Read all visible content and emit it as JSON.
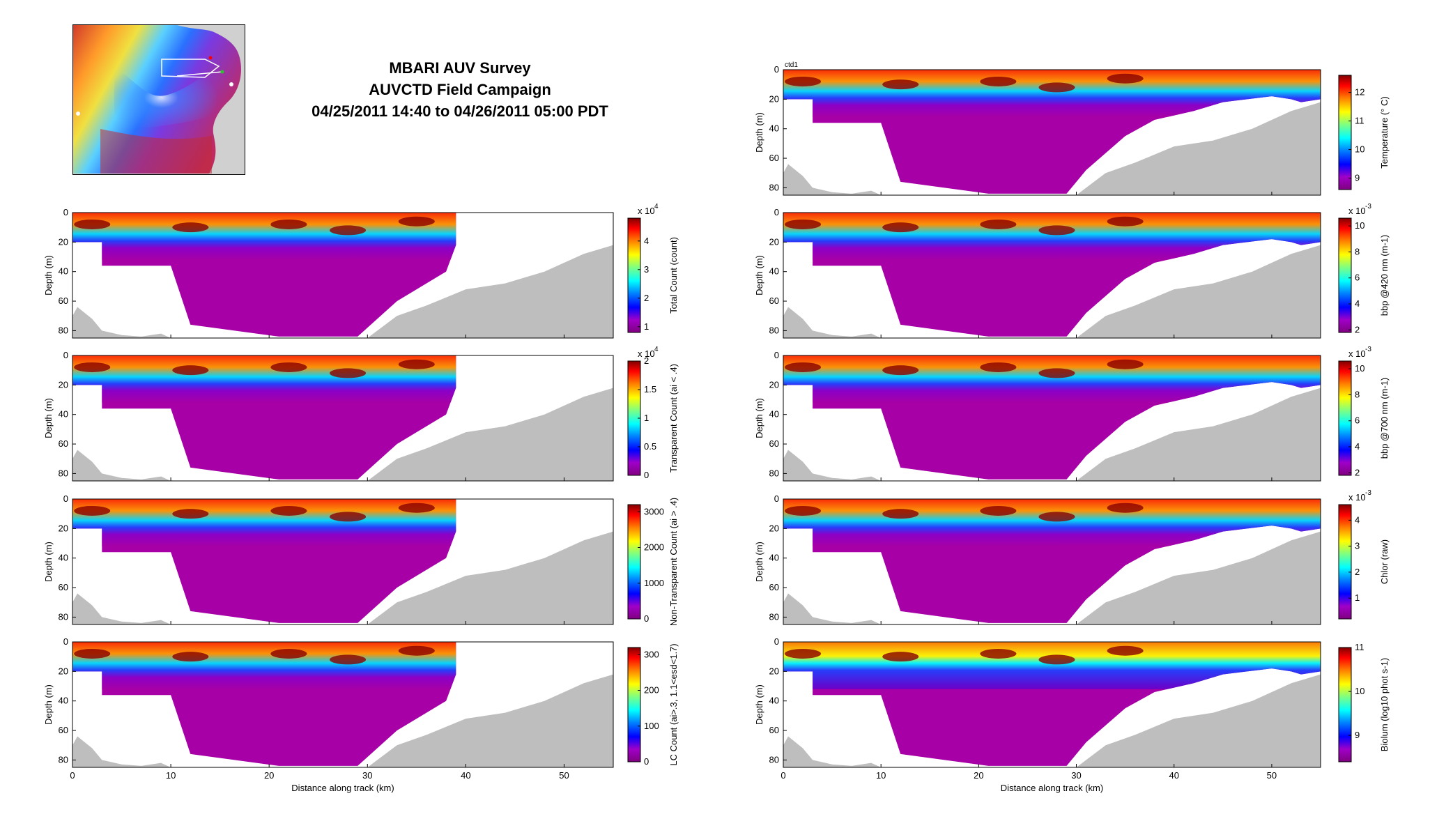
{
  "header": {
    "line1": "MBARI AUV Survey",
    "line2": "AUVCTD Field Campaign",
    "line3": "04/25/2011 14:40 to 04/26/2011 05:00 PDT"
  },
  "colors": {
    "water_fill": "#a600a6",
    "seafloor": "#bebebe",
    "colormap": "jet"
  },
  "chart_data": [
    {
      "type": "heatmap",
      "panel": "left-1",
      "xlabel": "",
      "ylabel": "Depth (m)",
      "xlim": [
        0,
        55
      ],
      "ylim": [
        85,
        0
      ],
      "xticks": [
        "0",
        "10",
        "20",
        "30",
        "40",
        "50"
      ],
      "yticks": [
        "0",
        "20",
        "40",
        "60",
        "80"
      ],
      "x_tick_labels_shown": false,
      "colorbar": {
        "label": "Total Count (count)",
        "multiplier": "x 10",
        "exponent": "4",
        "range": [
          0.8,
          4.8
        ],
        "ticks": [
          "1",
          "2",
          "3",
          "4"
        ]
      },
      "annotation": "",
      "data_extent_km": 39
    },
    {
      "type": "heatmap",
      "panel": "left-2",
      "xlabel": "",
      "ylabel": "Depth (m)",
      "xlim": [
        0,
        55
      ],
      "ylim": [
        85,
        0
      ],
      "xticks": [
        "0",
        "10",
        "20",
        "30",
        "40",
        "50"
      ],
      "yticks": [
        "0",
        "20",
        "40",
        "60",
        "80"
      ],
      "x_tick_labels_shown": false,
      "colorbar": {
        "label": "Transparent Count (ai < .4)",
        "multiplier": "x 10",
        "exponent": "4",
        "range": [
          0,
          2
        ],
        "ticks": [
          "0",
          "0.5",
          "1",
          "1.5",
          "2"
        ]
      },
      "annotation": "",
      "data_extent_km": 39
    },
    {
      "type": "heatmap",
      "panel": "left-3",
      "xlabel": "",
      "ylabel": "Depth (m)",
      "xlim": [
        0,
        55
      ],
      "ylim": [
        85,
        0
      ],
      "xticks": [
        "0",
        "10",
        "20",
        "30",
        "40",
        "50"
      ],
      "yticks": [
        "0",
        "20",
        "40",
        "60",
        "80"
      ],
      "x_tick_labels_shown": false,
      "colorbar": {
        "label": "Non-Transparent Count (ai > .4)",
        "multiplier": "",
        "exponent": "",
        "range": [
          0,
          3200
        ],
        "ticks": [
          "0",
          "1000",
          "2000",
          "3000"
        ]
      },
      "annotation": "",
      "data_extent_km": 39
    },
    {
      "type": "heatmap",
      "panel": "left-4",
      "xlabel": "Distance along track (km)",
      "ylabel": "Depth (m)",
      "xlim": [
        0,
        55
      ],
      "ylim": [
        85,
        0
      ],
      "xticks": [
        "0",
        "10",
        "20",
        "30",
        "40",
        "50"
      ],
      "yticks": [
        "0",
        "20",
        "40",
        "60",
        "80"
      ],
      "x_tick_labels_shown": true,
      "colorbar": {
        "label": "LC Count (ai>.3, 1.1<esd<1.7)",
        "multiplier": "",
        "exponent": "",
        "range": [
          0,
          320
        ],
        "ticks": [
          "0",
          "100",
          "200",
          "300"
        ]
      },
      "annotation": "",
      "data_extent_km": 39
    },
    {
      "type": "heatmap",
      "panel": "right-1",
      "xlabel": "",
      "ylabel": "Depth (m)",
      "xlim": [
        0,
        55
      ],
      "ylim": [
        85,
        0
      ],
      "xticks": [
        "0",
        "10",
        "20",
        "30",
        "40",
        "50"
      ],
      "yticks": [
        "0",
        "20",
        "40",
        "60",
        "80"
      ],
      "x_tick_labels_shown": false,
      "colorbar": {
        "label": "Temperature (° C)",
        "multiplier": "",
        "exponent": "",
        "range": [
          8.6,
          12.6
        ],
        "ticks": [
          "9",
          "10",
          "11",
          "12"
        ]
      },
      "annotation": "ctd1",
      "data_extent_km": 55
    },
    {
      "type": "heatmap",
      "panel": "right-2",
      "xlabel": "",
      "ylabel": "Depth (m)",
      "xlim": [
        0,
        55
      ],
      "ylim": [
        85,
        0
      ],
      "xticks": [
        "0",
        "10",
        "20",
        "30",
        "40",
        "50"
      ],
      "yticks": [
        "0",
        "20",
        "40",
        "60",
        "80"
      ],
      "x_tick_labels_shown": false,
      "colorbar": {
        "label": "bbp @420 nm (m-1)",
        "multiplier": "x 10",
        "exponent": "-3",
        "range": [
          1.8,
          10.6
        ],
        "ticks": [
          "2",
          "4",
          "6",
          "8",
          "10"
        ]
      },
      "annotation": "",
      "data_extent_km": 55
    },
    {
      "type": "heatmap",
      "panel": "right-3",
      "xlabel": "",
      "ylabel": "Depth (m)",
      "xlim": [
        0,
        55
      ],
      "ylim": [
        85,
        0
      ],
      "xticks": [
        "0",
        "10",
        "20",
        "30",
        "40",
        "50"
      ],
      "yticks": [
        "0",
        "20",
        "40",
        "60",
        "80"
      ],
      "x_tick_labels_shown": false,
      "colorbar": {
        "label": "bbp @700 nm (m-1)",
        "multiplier": "x 10",
        "exponent": "-3",
        "range": [
          1.8,
          10.6
        ],
        "ticks": [
          "2",
          "4",
          "6",
          "8",
          "10"
        ]
      },
      "annotation": "",
      "data_extent_km": 55
    },
    {
      "type": "heatmap",
      "panel": "right-4",
      "xlabel": "",
      "ylabel": "Depth (m)",
      "xlim": [
        0,
        55
      ],
      "ylim": [
        85,
        0
      ],
      "xticks": [
        "0",
        "10",
        "20",
        "30",
        "40",
        "50"
      ],
      "yticks": [
        "0",
        "20",
        "40",
        "60",
        "80"
      ],
      "x_tick_labels_shown": false,
      "colorbar": {
        "label": "Chlor (raw)",
        "multiplier": "x 10",
        "exponent": "-3",
        "range": [
          0.2,
          4.6
        ],
        "ticks": [
          "1",
          "2",
          "3",
          "4"
        ]
      },
      "annotation": "",
      "data_extent_km": 55
    },
    {
      "type": "heatmap",
      "panel": "right-5",
      "xlabel": "Distance along track (km)",
      "ylabel": "Depth (m)",
      "xlim": [
        0,
        55
      ],
      "ylim": [
        85,
        0
      ],
      "xticks": [
        "0",
        "10",
        "20",
        "30",
        "40",
        "50"
      ],
      "yticks": [
        "0",
        "20",
        "40",
        "60",
        "80"
      ],
      "x_tick_labels_shown": true,
      "colorbar": {
        "label": "Biolum (log10 phot s-1)",
        "multiplier": "",
        "exponent": "",
        "range": [
          8.4,
          11
        ],
        "ticks": [
          "9",
          "10",
          "11"
        ]
      },
      "annotation": "",
      "data_extent_km": 55
    }
  ]
}
